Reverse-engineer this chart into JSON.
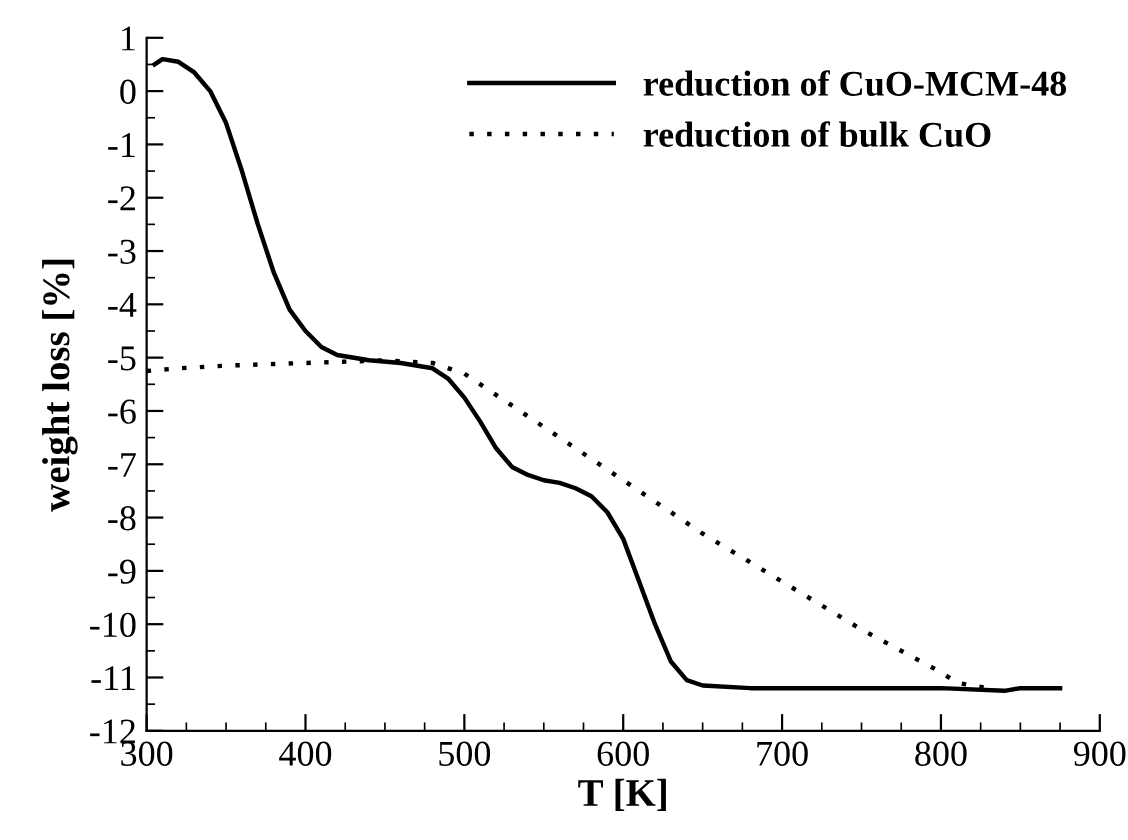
{
  "chart_data": {
    "type": "line",
    "xlabel": "T [K]",
    "ylabel": "weight loss [%]",
    "xlim": [
      300,
      900
    ],
    "xticks": [
      300,
      400,
      500,
      600,
      700,
      800,
      900
    ],
    "ylim": [
      -12,
      1
    ],
    "yticks": [
      -12,
      -11,
      -10,
      -9,
      -8,
      -7,
      -6,
      -5,
      -4,
      -3,
      -2,
      -1,
      0,
      1
    ],
    "grid": false,
    "legend": "top right",
    "marker": "none",
    "series": [
      {
        "name": "reduction of CuO-MCM-48",
        "color": "#000000",
        "line_style": "solid",
        "x": [
          305,
          310,
          320,
          330,
          340,
          350,
          360,
          370,
          380,
          390,
          400,
          410,
          420,
          440,
          460,
          480,
          490,
          500,
          510,
          520,
          530,
          540,
          550,
          560,
          570,
          580,
          590,
          600,
          610,
          620,
          630,
          640,
          650,
          680,
          750,
          800,
          840,
          850,
          875
        ],
        "values": [
          0.5,
          0.6,
          0.55,
          0.35,
          0,
          -0.6,
          -1.5,
          -2.5,
          -3.4,
          -4.1,
          -4.5,
          -4.8,
          -4.95,
          -5.05,
          -5.1,
          -5.2,
          -5.4,
          -5.75,
          -6.2,
          -6.7,
          -7.05,
          -7.2,
          -7.3,
          -7.35,
          -7.45,
          -7.6,
          -7.9,
          -8.4,
          -9.2,
          -10.0,
          -10.7,
          -11.05,
          -11.15,
          -11.2,
          -11.2,
          -11.2,
          -11.25,
          -11.2,
          -11.2
        ]
      },
      {
        "name": "reduction of bulk CuO",
        "color": "#000000",
        "line_style": "dotted",
        "x": [
          300,
          320,
          350,
          400,
          450,
          480,
          500,
          520,
          550,
          600,
          650,
          700,
          750,
          800,
          810,
          830
        ],
        "values": [
          -5.25,
          -5.2,
          -5.15,
          -5.1,
          -5.05,
          -5.1,
          -5.3,
          -5.7,
          -6.3,
          -7.3,
          -8.3,
          -9.2,
          -10.1,
          -10.9,
          -11.1,
          -11.2
        ]
      }
    ]
  }
}
